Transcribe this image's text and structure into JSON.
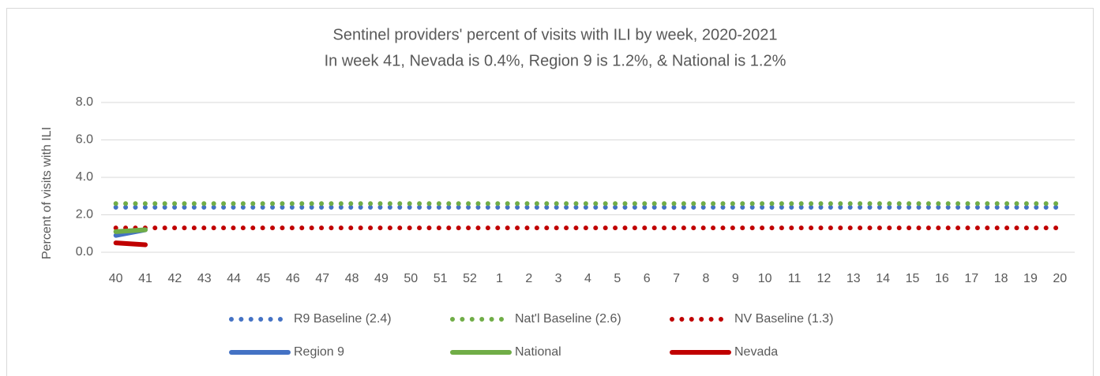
{
  "chart_data": {
    "type": "line",
    "title": "Sentinel providers' percent of visits with ILI by week, 2020-2021",
    "subtitle": "In week 41, Nevada is 0.4%, Region 9 is 1.2%, & National is 1.2%",
    "y_label": "Percent of visits with ILI",
    "categories": [
      "40",
      "41",
      "42",
      "43",
      "44",
      "45",
      "46",
      "47",
      "48",
      "49",
      "50",
      "51",
      "52",
      "1",
      "2",
      "3",
      "4",
      "5",
      "6",
      "7",
      "8",
      "9",
      "10",
      "11",
      "12",
      "13",
      "14",
      "15",
      "16",
      "17",
      "18",
      "19",
      "20"
    ],
    "ylim": [
      0,
      8
    ],
    "yticks": [
      {
        "value": 0,
        "label": "0.0"
      },
      {
        "value": 2,
        "label": "2.0"
      },
      {
        "value": 4,
        "label": "4.0"
      },
      {
        "value": 6,
        "label": "6.0"
      },
      {
        "value": 8,
        "label": "8.0"
      }
    ],
    "grid": true,
    "legend": "bottom",
    "series": [
      {
        "name": "R9 Baseline (2.4)",
        "color": "#4472c4",
        "style": "dotted",
        "values": [
          2.4,
          2.4,
          2.4,
          2.4,
          2.4,
          2.4,
          2.4,
          2.4,
          2.4,
          2.4,
          2.4,
          2.4,
          2.4,
          2.4,
          2.4,
          2.4,
          2.4,
          2.4,
          2.4,
          2.4,
          2.4,
          2.4,
          2.4,
          2.4,
          2.4,
          2.4,
          2.4,
          2.4,
          2.4,
          2.4,
          2.4,
          2.4,
          2.4
        ]
      },
      {
        "name": "Nat'l Baseline (2.6)",
        "color": "#70ad47",
        "style": "dotted",
        "values": [
          2.6,
          2.6,
          2.6,
          2.6,
          2.6,
          2.6,
          2.6,
          2.6,
          2.6,
          2.6,
          2.6,
          2.6,
          2.6,
          2.6,
          2.6,
          2.6,
          2.6,
          2.6,
          2.6,
          2.6,
          2.6,
          2.6,
          2.6,
          2.6,
          2.6,
          2.6,
          2.6,
          2.6,
          2.6,
          2.6,
          2.6,
          2.6,
          2.6
        ]
      },
      {
        "name": "NV Baseline (1.3)",
        "color": "#c00000",
        "style": "dotted",
        "values": [
          1.3,
          1.3,
          1.3,
          1.3,
          1.3,
          1.3,
          1.3,
          1.3,
          1.3,
          1.3,
          1.3,
          1.3,
          1.3,
          1.3,
          1.3,
          1.3,
          1.3,
          1.3,
          1.3,
          1.3,
          1.3,
          1.3,
          1.3,
          1.3,
          1.3,
          1.3,
          1.3,
          1.3,
          1.3,
          1.3,
          1.3,
          1.3,
          1.3
        ]
      },
      {
        "name": "Region 9",
        "color": "#4472c4",
        "style": "solid",
        "values": [
          0.9,
          1.2,
          null,
          null,
          null,
          null,
          null,
          null,
          null,
          null,
          null,
          null,
          null,
          null,
          null,
          null,
          null,
          null,
          null,
          null,
          null,
          null,
          null,
          null,
          null,
          null,
          null,
          null,
          null,
          null,
          null,
          null,
          null
        ]
      },
      {
        "name": "National",
        "color": "#70ad47",
        "style": "solid",
        "values": [
          1.1,
          1.2,
          null,
          null,
          null,
          null,
          null,
          null,
          null,
          null,
          null,
          null,
          null,
          null,
          null,
          null,
          null,
          null,
          null,
          null,
          null,
          null,
          null,
          null,
          null,
          null,
          null,
          null,
          null,
          null,
          null,
          null,
          null
        ]
      },
      {
        "name": "Nevada",
        "color": "#c00000",
        "style": "solid",
        "values": [
          0.5,
          0.4,
          null,
          null,
          null,
          null,
          null,
          null,
          null,
          null,
          null,
          null,
          null,
          null,
          null,
          null,
          null,
          null,
          null,
          null,
          null,
          null,
          null,
          null,
          null,
          null,
          null,
          null,
          null,
          null,
          null,
          null,
          null
        ]
      }
    ]
  }
}
